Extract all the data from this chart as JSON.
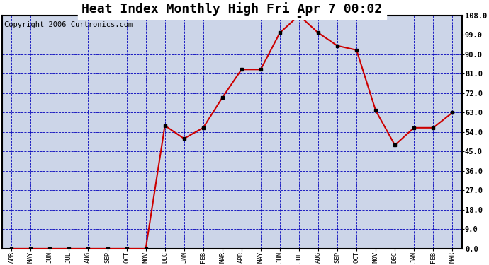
{
  "title": "Heat Index Monthly High Fri Apr 7 00:02",
  "copyright": "Copyright 2006 Curtronics.com",
  "categories": [
    "APR",
    "MAY",
    "JUN",
    "JUL",
    "AUG",
    "SEP",
    "OCT",
    "NOV",
    "DEC",
    "JAN",
    "FEB",
    "MAR",
    "APR",
    "MAY",
    "JUN",
    "JUL",
    "AUG",
    "SEP",
    "OCT",
    "NOV",
    "DEC",
    "JAN",
    "FEB",
    "MAR"
  ],
  "values": [
    0,
    0,
    0,
    0,
    0,
    0,
    0,
    0,
    57,
    51,
    56,
    70,
    83,
    83,
    100,
    108,
    100,
    94,
    92,
    64,
    48,
    56,
    56,
    63
  ],
  "line_color": "#cc0000",
  "marker_color": "#000000",
  "outer_bg": "#ffffff",
  "plot_bg": "#ccd5e8",
  "grid_color": "#0000bb",
  "ylim": [
    0,
    108
  ],
  "yticks": [
    0.0,
    9.0,
    18.0,
    27.0,
    36.0,
    45.0,
    54.0,
    63.0,
    72.0,
    81.0,
    90.0,
    99.0,
    108.0
  ],
  "title_fontsize": 13,
  "copyright_fontsize": 7.5
}
